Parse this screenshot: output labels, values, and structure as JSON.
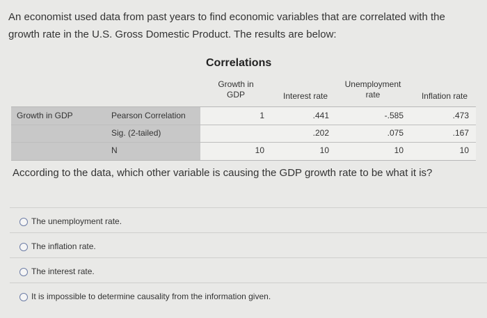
{
  "question": "An economist used data from past years to find economic variables that are correlated with the growth rate in the U.S. Gross Domestic Product. The results are below:",
  "table": {
    "title": "Correlations",
    "columns": [
      "Growth in GDP",
      "Interest rate",
      "Unemployment rate",
      "Inflation rate"
    ],
    "row_header": "Growth in GDP",
    "rows": [
      {
        "label": "Pearson Correlation",
        "values": [
          "1",
          ".441",
          "-.585",
          ".473"
        ]
      },
      {
        "label": "Sig. (2-tailed)",
        "values": [
          "",
          ".202",
          ".075",
          ".167"
        ]
      },
      {
        "label": "N",
        "values": [
          "10",
          "10",
          "10",
          "10"
        ]
      }
    ]
  },
  "prompt": "According to the data, which other variable is causing the GDP growth rate to be what it is?",
  "answers": [
    {
      "label": "The unemployment rate."
    },
    {
      "label": "The inflation rate."
    },
    {
      "label": "The interest rate."
    },
    {
      "label": "It is impossible to determine causality from the information given."
    }
  ]
}
